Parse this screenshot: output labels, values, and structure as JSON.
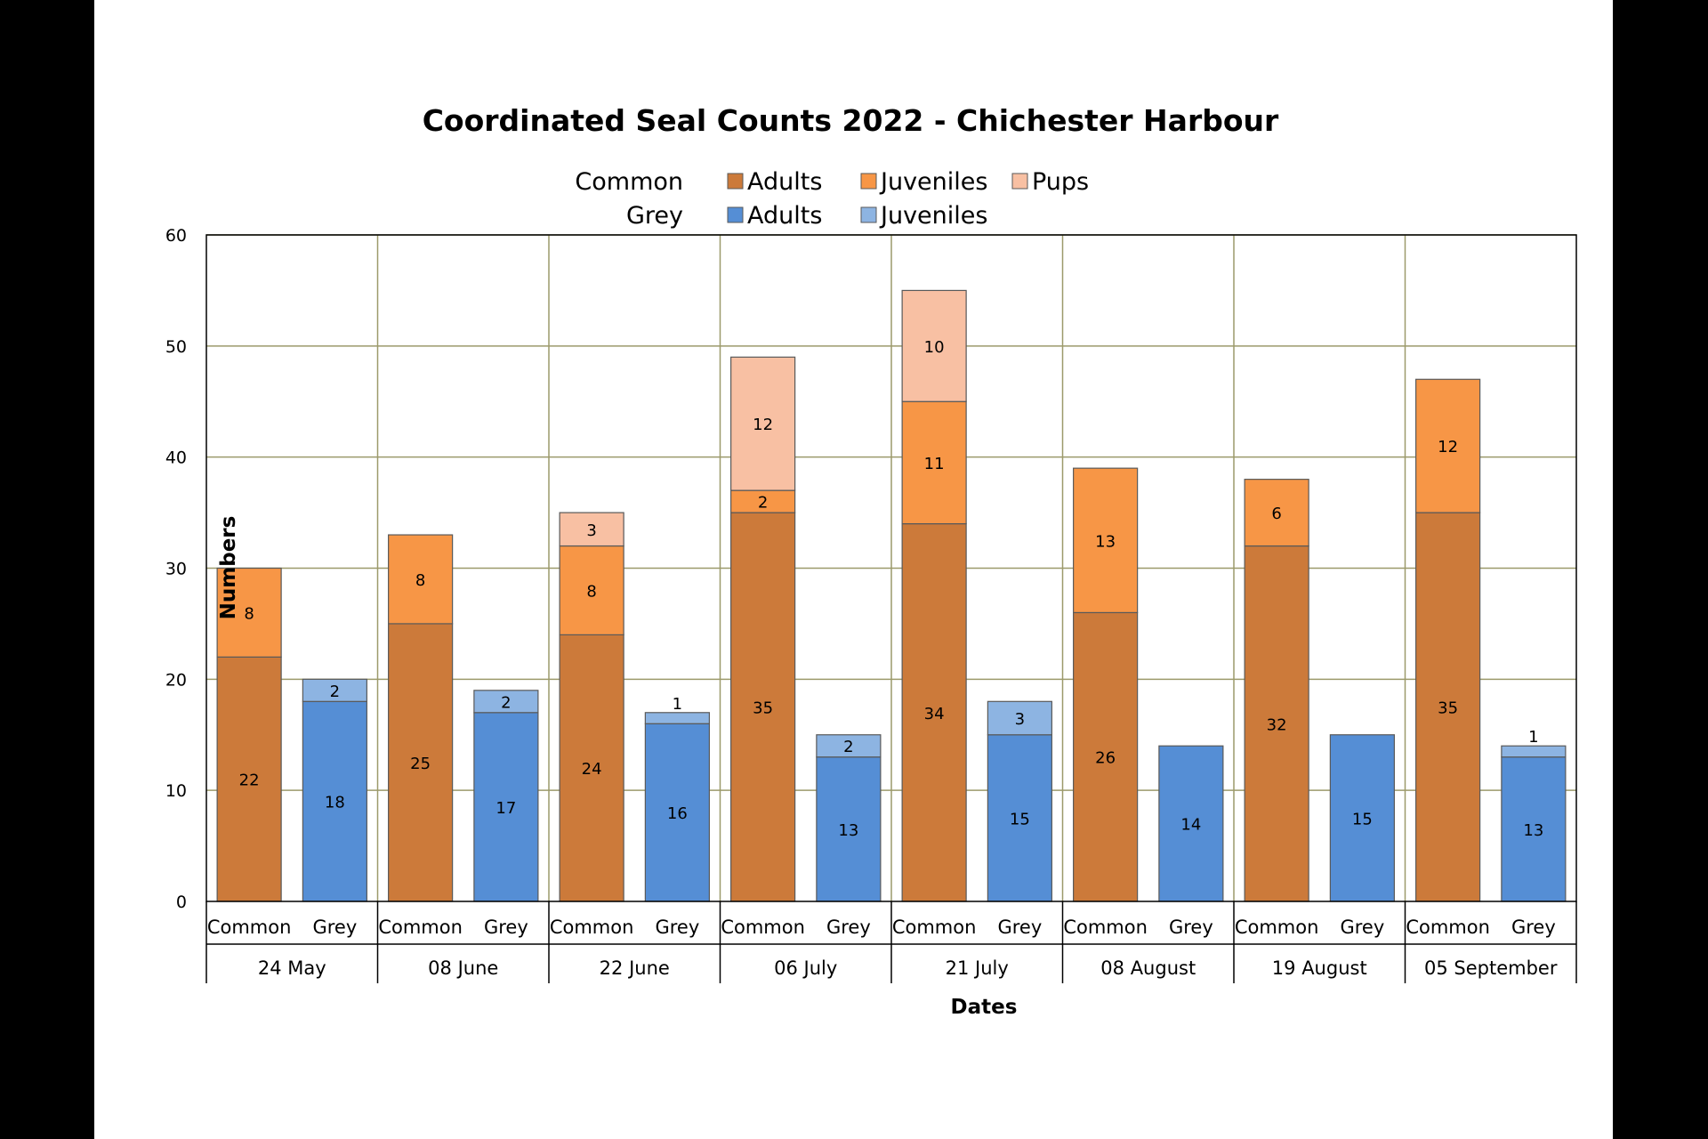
{
  "chart_data": {
    "type": "bar",
    "stacked": true,
    "title": "Coordinated Seal Counts 2022 - Chichester Harbour",
    "xlabel": "Dates",
    "ylabel": "Numbers",
    "ylim": [
      0,
      60
    ],
    "y_ticks": [
      "0",
      "10",
      "20",
      "30",
      "40",
      "50",
      "60"
    ],
    "grid": true,
    "legend_position": "top",
    "legend": [
      {
        "group": "Common",
        "entries": [
          {
            "name": "Adults",
            "color": "#CC7A3A"
          },
          {
            "name": "Juveniles",
            "color": "#F79646"
          },
          {
            "name": "Pups",
            "color": "#F8C0A3"
          }
        ]
      },
      {
        "group": "Grey",
        "entries": [
          {
            "name": "Adults",
            "color": "#558ED5"
          },
          {
            "name": "Juveniles",
            "color": "#8DB4E2"
          }
        ]
      }
    ],
    "categories": [
      "24 May",
      "08 June",
      "22 June",
      "06 July",
      "21 July",
      "08 August",
      "19 August",
      "05 September"
    ],
    "sub_categories": [
      "Common",
      "Grey"
    ],
    "series": {
      "Common": {
        "Adults": [
          22,
          25,
          24,
          35,
          34,
          26,
          32,
          35
        ],
        "Juveniles": [
          8,
          8,
          8,
          2,
          11,
          13,
          6,
          12
        ],
        "Pups": [
          0,
          0,
          3,
          12,
          10,
          0,
          0,
          0
        ]
      },
      "Grey": {
        "Adults": [
          18,
          17,
          16,
          13,
          15,
          14,
          15,
          13
        ],
        "Juveniles": [
          2,
          2,
          1,
          2,
          3,
          0,
          0,
          1
        ]
      }
    },
    "colors": {
      "common_adults": "#CC7A3A",
      "common_juveniles": "#F79646",
      "common_pups": "#F8C0A3",
      "grey_adults": "#558ED5",
      "grey_juveniles": "#8DB4E2",
      "grid": "#9C9A6B"
    }
  }
}
